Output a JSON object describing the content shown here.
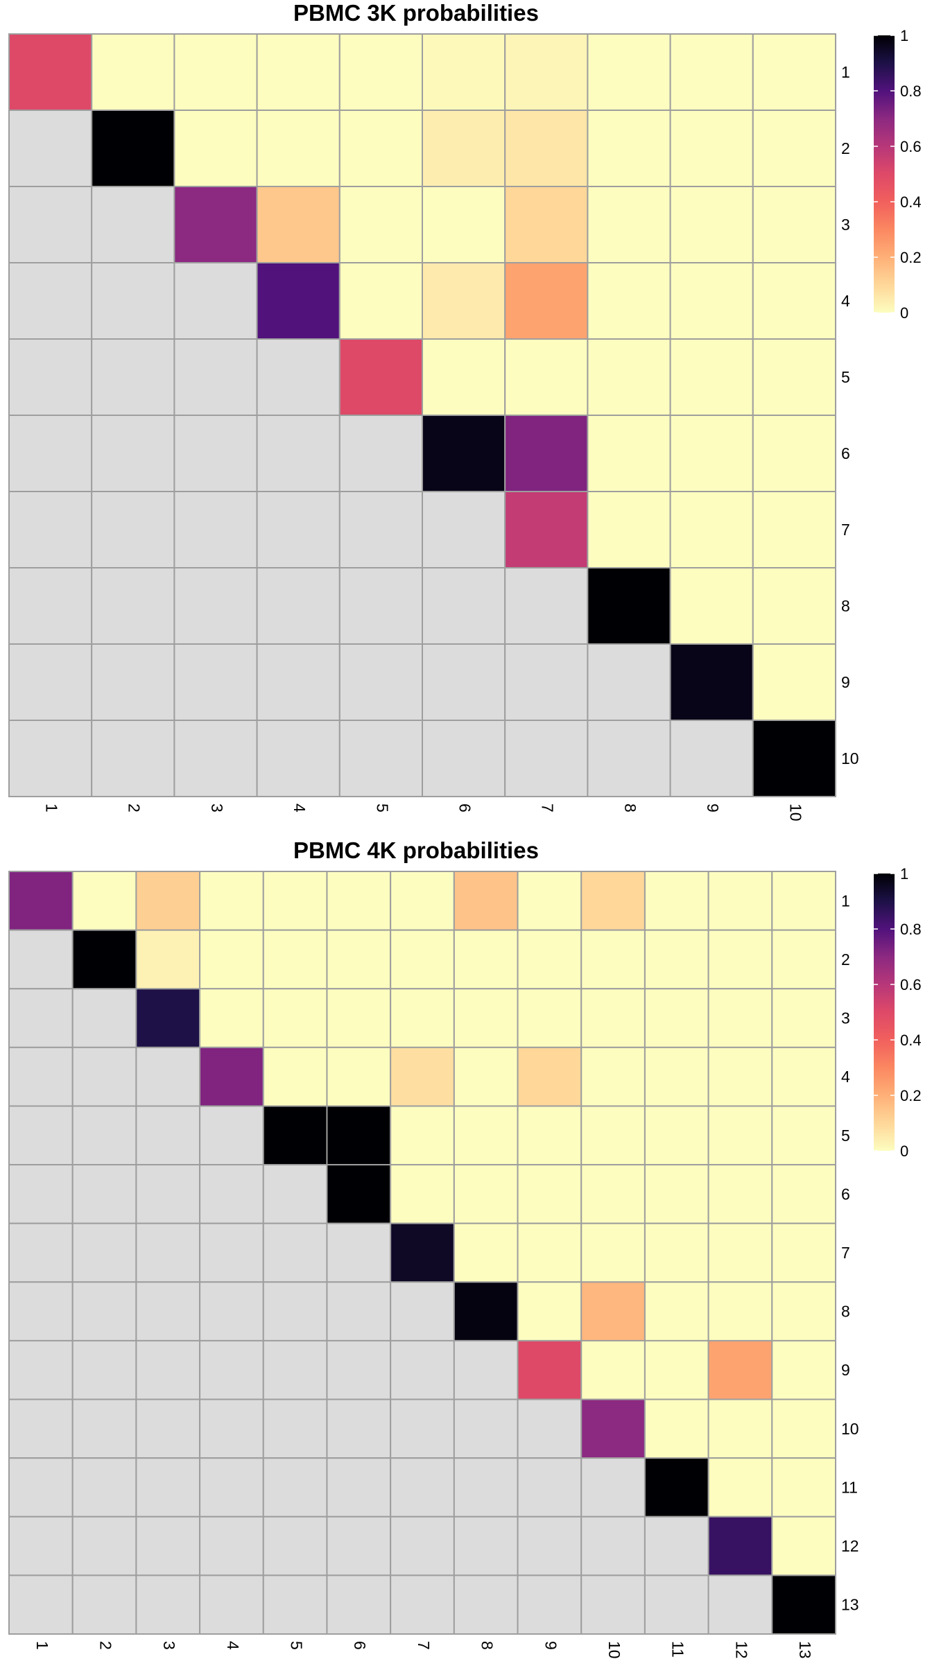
{
  "chart_data": [
    {
      "type": "heatmap",
      "title": "PBMC 3K probabilities",
      "n": 10,
      "row_labels": [
        "1",
        "2",
        "3",
        "4",
        "5",
        "6",
        "7",
        "8",
        "9",
        "10"
      ],
      "col_labels": [
        "1",
        "2",
        "3",
        "4",
        "5",
        "6",
        "7",
        "8",
        "9",
        "10"
      ],
      "lower_triangle": "masked (grey)",
      "scale": {
        "min": 0,
        "max": 1,
        "ticks": [
          "0",
          "0.2",
          "0.4",
          "0.6",
          "0.8",
          "1"
        ],
        "palette": "magma (reversed)"
      },
      "values": [
        [
          0.5,
          0.0,
          0.0,
          0.0,
          0.0,
          0.01,
          0.02,
          0.0,
          0.0,
          0.0
        ],
        [
          null,
          1.0,
          0.0,
          0.0,
          0.0,
          0.04,
          0.06,
          0.0,
          0.0,
          0.0
        ],
        [
          null,
          null,
          0.7,
          0.14,
          0.0,
          0.0,
          0.1,
          0.0,
          0.0,
          0.0
        ],
        [
          null,
          null,
          null,
          0.8,
          0.0,
          0.05,
          0.23,
          0.0,
          0.0,
          0.0
        ],
        [
          null,
          null,
          null,
          null,
          0.5,
          0.0,
          0.0,
          0.0,
          0.0,
          0.0
        ],
        [
          null,
          null,
          null,
          null,
          null,
          0.97,
          0.72,
          0.0,
          0.0,
          0.0
        ],
        [
          null,
          null,
          null,
          null,
          null,
          null,
          0.57,
          0.0,
          0.0,
          0.0
        ],
        [
          null,
          null,
          null,
          null,
          null,
          null,
          null,
          1.0,
          0.0,
          0.0
        ],
        [
          null,
          null,
          null,
          null,
          null,
          null,
          null,
          null,
          0.97,
          0.0
        ],
        [
          null,
          null,
          null,
          null,
          null,
          null,
          null,
          null,
          null,
          1.0
        ]
      ]
    },
    {
      "type": "heatmap",
      "title": "PBMC 4K probabilities",
      "n": 13,
      "row_labels": [
        "1",
        "2",
        "3",
        "4",
        "5",
        "6",
        "7",
        "8",
        "9",
        "10",
        "11",
        "12",
        "13"
      ],
      "col_labels": [
        "1",
        "2",
        "3",
        "4",
        "5",
        "6",
        "7",
        "8",
        "9",
        "10",
        "11",
        "12",
        "13"
      ],
      "lower_triangle": "masked (grey)",
      "scale": {
        "min": 0,
        "max": 1,
        "ticks": [
          "0",
          "0.2",
          "0.4",
          "0.6",
          "0.8",
          "1"
        ],
        "palette": "magma (reversed)"
      },
      "values": [
        [
          0.72,
          0.0,
          0.12,
          0.0,
          0.0,
          0.0,
          0.0,
          0.15,
          0.0,
          0.1,
          0.0,
          0.0,
          0.0
        ],
        [
          null,
          1.0,
          0.03,
          0.0,
          0.0,
          0.0,
          0.0,
          0.0,
          0.0,
          0.0,
          0.0,
          0.0,
          0.0
        ],
        [
          null,
          null,
          0.9,
          0.0,
          0.0,
          0.0,
          0.0,
          0.0,
          0.0,
          0.0,
          0.0,
          0.0,
          0.0
        ],
        [
          null,
          null,
          null,
          0.72,
          0.0,
          0.0,
          0.08,
          0.0,
          0.1,
          0.0,
          0.0,
          0.0,
          0.0
        ],
        [
          null,
          null,
          null,
          null,
          1.0,
          1.0,
          0.0,
          0.0,
          0.0,
          0.0,
          0.0,
          0.0,
          0.0
        ],
        [
          null,
          null,
          null,
          null,
          null,
          1.0,
          0.0,
          0.0,
          0.0,
          0.0,
          0.0,
          0.0,
          0.0
        ],
        [
          null,
          null,
          null,
          null,
          null,
          null,
          0.95,
          0.0,
          0.0,
          0.0,
          0.0,
          0.0,
          0.0
        ],
        [
          null,
          null,
          null,
          null,
          null,
          null,
          null,
          0.98,
          0.0,
          0.18,
          0.0,
          0.0,
          0.0
        ],
        [
          null,
          null,
          null,
          null,
          null,
          null,
          null,
          null,
          0.5,
          0.0,
          0.0,
          0.23,
          0.0
        ],
        [
          null,
          null,
          null,
          null,
          null,
          null,
          null,
          null,
          null,
          0.7,
          0.0,
          0.0,
          0.0
        ],
        [
          null,
          null,
          null,
          null,
          null,
          null,
          null,
          null,
          null,
          null,
          1.0,
          0.0,
          0.0
        ],
        [
          null,
          null,
          null,
          null,
          null,
          null,
          null,
          null,
          null,
          null,
          null,
          0.85,
          0.0
        ],
        [
          null,
          null,
          null,
          null,
          null,
          null,
          null,
          null,
          null,
          null,
          null,
          null,
          1.0
        ]
      ]
    }
  ]
}
